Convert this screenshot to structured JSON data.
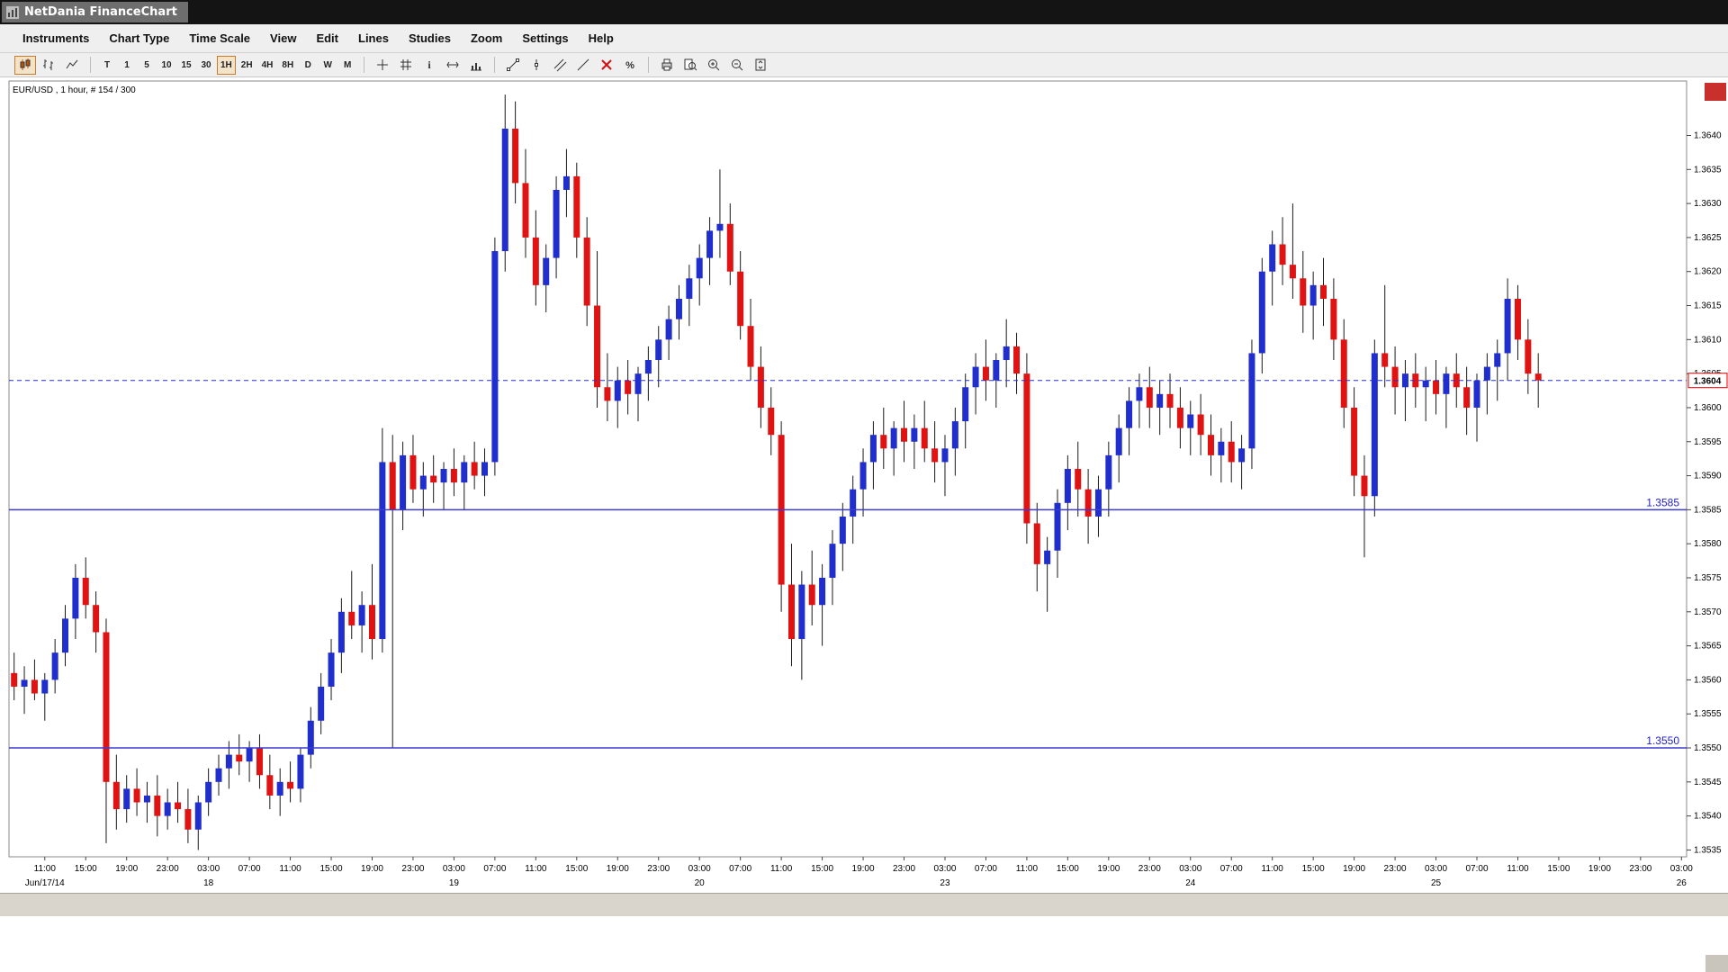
{
  "window": {
    "title": "NetDania FinanceChart"
  },
  "menu": {
    "items": [
      "Instruments",
      "Chart Type",
      "Time Scale",
      "View",
      "Edit",
      "Lines",
      "Studies",
      "Zoom",
      "Settings",
      "Help"
    ]
  },
  "toolbar": {
    "buttons": [
      {
        "name": "candlestick-chart-button",
        "icon": "candles",
        "selected": true
      },
      {
        "name": "bar-chart-button",
        "icon": "bars"
      },
      {
        "name": "line-chart-button",
        "icon": "linechart"
      },
      {
        "type": "sep"
      },
      {
        "name": "timescale-tick-button",
        "label": "T"
      },
      {
        "name": "timescale-1m-button",
        "label": "1"
      },
      {
        "name": "timescale-5m-button",
        "label": "5"
      },
      {
        "name": "timescale-10m-button",
        "label": "10"
      },
      {
        "name": "timescale-15m-button",
        "label": "15"
      },
      {
        "name": "timescale-30m-button",
        "label": "30"
      },
      {
        "name": "timescale-1h-button",
        "label": "1H",
        "selected": true
      },
      {
        "name": "timescale-2h-button",
        "label": "2H"
      },
      {
        "name": "timescale-4h-button",
        "label": "4H"
      },
      {
        "name": "timescale-8h-button",
        "label": "8H"
      },
      {
        "name": "timescale-day-button",
        "label": "D"
      },
      {
        "name": "timescale-week-button",
        "label": "W"
      },
      {
        "name": "timescale-month-button",
        "label": "M"
      },
      {
        "type": "sep"
      },
      {
        "name": "crosshair-button",
        "icon": "crosshair"
      },
      {
        "name": "grid-button",
        "icon": "grid"
      },
      {
        "name": "info-button",
        "icon": "info"
      },
      {
        "name": "expand-horizontal-button",
        "icon": "hresize"
      },
      {
        "name": "volume-button",
        "icon": "volume"
      },
      {
        "type": "sep"
      },
      {
        "name": "trendline-button",
        "icon": "trendline"
      },
      {
        "name": "vertical-line-button",
        "icon": "vline"
      },
      {
        "name": "channel-button",
        "icon": "channel"
      },
      {
        "name": "ray-button",
        "icon": "ray"
      },
      {
        "name": "delete-drawings-button",
        "icon": "deletex"
      },
      {
        "name": "percent-scale-button",
        "icon": "percent"
      },
      {
        "type": "sep"
      },
      {
        "name": "print-button",
        "icon": "print"
      },
      {
        "name": "print-preview-button",
        "icon": "preview"
      },
      {
        "name": "zoom-in-button",
        "icon": "zoomin"
      },
      {
        "name": "zoom-out-button",
        "icon": "zoomout"
      },
      {
        "name": "y-axis-scale-button",
        "icon": "scalebtn"
      }
    ]
  },
  "chart": {
    "instrument_label": "EUR/USD , 1 hour, # 154 / 300",
    "current_price_label": "1.3604",
    "support_lines": [
      {
        "label": "1.3585",
        "value": 1.3585
      },
      {
        "label": "1.3550",
        "value": 1.355
      }
    ]
  },
  "chart_data": {
    "type": "candlestick",
    "symbol": "EUR/USD",
    "interval": "1 hour",
    "colors": {
      "up": "#1f2ecc",
      "down": "#e01212",
      "wick": "#1a1a1a",
      "line": "#2233cc"
    },
    "current_price": 1.3604,
    "y_axis": {
      "min": 1.3534,
      "max": 1.3648,
      "labels": [
        "1.3640",
        "1.3635",
        "1.3630",
        "1.3625",
        "1.3620",
        "1.3615",
        "1.3610",
        "1.3605",
        "1.3600",
        "1.3595",
        "1.3590",
        "1.3585",
        "1.3580",
        "1.3575",
        "1.3570",
        "1.3565",
        "1.3560",
        "1.3555",
        "1.3550",
        "1.3545",
        "1.3540",
        "1.3535"
      ]
    },
    "x_axis": {
      "total_slots": 164,
      "time_labels": [
        {
          "s": 3,
          "t": "11:00"
        },
        {
          "s": 7,
          "t": "15:00"
        },
        {
          "s": 11,
          "t": "19:00"
        },
        {
          "s": 15,
          "t": "23:00"
        },
        {
          "s": 19,
          "t": "03:00"
        },
        {
          "s": 23,
          "t": "07:00"
        },
        {
          "s": 27,
          "t": "11:00"
        },
        {
          "s": 31,
          "t": "15:00"
        },
        {
          "s": 35,
          "t": "19:00"
        },
        {
          "s": 39,
          "t": "23:00"
        },
        {
          "s": 43,
          "t": "03:00"
        },
        {
          "s": 47,
          "t": "07:00"
        },
        {
          "s": 51,
          "t": "11:00"
        },
        {
          "s": 55,
          "t": "15:00"
        },
        {
          "s": 59,
          "t": "19:00"
        },
        {
          "s": 63,
          "t": "23:00"
        },
        {
          "s": 67,
          "t": "03:00"
        },
        {
          "s": 71,
          "t": "07:00"
        },
        {
          "s": 75,
          "t": "11:00"
        },
        {
          "s": 79,
          "t": "15:00"
        },
        {
          "s": 83,
          "t": "19:00"
        },
        {
          "s": 87,
          "t": "23:00"
        },
        {
          "s": 91,
          "t": "03:00"
        },
        {
          "s": 95,
          "t": "07:00"
        },
        {
          "s": 99,
          "t": "11:00"
        },
        {
          "s": 103,
          "t": "15:00"
        },
        {
          "s": 107,
          "t": "19:00"
        },
        {
          "s": 111,
          "t": "23:00"
        },
        {
          "s": 115,
          "t": "03:00"
        },
        {
          "s": 119,
          "t": "07:00"
        },
        {
          "s": 123,
          "t": "11:00"
        },
        {
          "s": 127,
          "t": "15:00"
        },
        {
          "s": 131,
          "t": "19:00"
        },
        {
          "s": 135,
          "t": "23:00"
        },
        {
          "s": 139,
          "t": "03:00"
        },
        {
          "s": 143,
          "t": "07:00"
        },
        {
          "s": 147,
          "t": "11:00"
        },
        {
          "s": 151,
          "t": "15:00"
        },
        {
          "s": 155,
          "t": "19:00"
        },
        {
          "s": 159,
          "t": "23:00"
        },
        {
          "s": 163,
          "t": "03:00"
        }
      ],
      "date_labels": [
        {
          "s": 3,
          "t": "Jun/17/14"
        },
        {
          "s": 19,
          "t": "18"
        },
        {
          "s": 43,
          "t": "19"
        },
        {
          "s": 67,
          "t": "20"
        },
        {
          "s": 91,
          "t": "23"
        },
        {
          "s": 115,
          "t": "24"
        },
        {
          "s": 139,
          "t": "25"
        },
        {
          "s": 163,
          "t": "26"
        }
      ]
    },
    "candles": [
      [
        1.3561,
        1.3564,
        1.3557,
        1.3559
      ],
      [
        1.3559,
        1.3562,
        1.3555,
        1.356
      ],
      [
        1.356,
        1.3563,
        1.3557,
        1.3558
      ],
      [
        1.3558,
        1.3561,
        1.3554,
        1.356
      ],
      [
        1.356,
        1.3566,
        1.3558,
        1.3564
      ],
      [
        1.3564,
        1.3571,
        1.3562,
        1.3569
      ],
      [
        1.3569,
        1.3577,
        1.3566,
        1.3575
      ],
      [
        1.3575,
        1.3578,
        1.3569,
        1.3571
      ],
      [
        1.3571,
        1.3573,
        1.3564,
        1.3567
      ],
      [
        1.3567,
        1.3569,
        1.3536,
        1.3545
      ],
      [
        1.3545,
        1.3549,
        1.3538,
        1.3541
      ],
      [
        1.3541,
        1.3546,
        1.3539,
        1.3544
      ],
      [
        1.3544,
        1.3547,
        1.354,
        1.3542
      ],
      [
        1.3542,
        1.3545,
        1.3539,
        1.3543
      ],
      [
        1.3543,
        1.3546,
        1.3537,
        1.354
      ],
      [
        1.354,
        1.3544,
        1.3538,
        1.3542
      ],
      [
        1.3542,
        1.3545,
        1.3539,
        1.3541
      ],
      [
        1.3541,
        1.3544,
        1.3536,
        1.3538
      ],
      [
        1.3538,
        1.3543,
        1.3535,
        1.3542
      ],
      [
        1.3542,
        1.3547,
        1.354,
        1.3545
      ],
      [
        1.3545,
        1.3549,
        1.3543,
        1.3547
      ],
      [
        1.3547,
        1.3551,
        1.3544,
        1.3549
      ],
      [
        1.3549,
        1.3552,
        1.3546,
        1.3548
      ],
      [
        1.3548,
        1.3551,
        1.3545,
        1.355
      ],
      [
        1.355,
        1.3552,
        1.3544,
        1.3546
      ],
      [
        1.3546,
        1.3549,
        1.3541,
        1.3543
      ],
      [
        1.3543,
        1.3547,
        1.354,
        1.3545
      ],
      [
        1.3545,
        1.3548,
        1.3542,
        1.3544
      ],
      [
        1.3544,
        1.355,
        1.3542,
        1.3549
      ],
      [
        1.3549,
        1.3556,
        1.3547,
        1.3554
      ],
      [
        1.3554,
        1.3561,
        1.3552,
        1.3559
      ],
      [
        1.3559,
        1.3566,
        1.3557,
        1.3564
      ],
      [
        1.3564,
        1.3572,
        1.3561,
        1.357
      ],
      [
        1.357,
        1.3576,
        1.3566,
        1.3568
      ],
      [
        1.3568,
        1.3573,
        1.3564,
        1.3571
      ],
      [
        1.3571,
        1.3577,
        1.3563,
        1.3566
      ],
      [
        1.3566,
        1.3597,
        1.3564,
        1.3592
      ],
      [
        1.3592,
        1.3596,
        1.355,
        1.3585
      ],
      [
        1.3585,
        1.3595,
        1.3582,
        1.3593
      ],
      [
        1.3593,
        1.3596,
        1.3586,
        1.3588
      ],
      [
        1.3588,
        1.3592,
        1.3584,
        1.359
      ],
      [
        1.359,
        1.3593,
        1.3586,
        1.3589
      ],
      [
        1.3589,
        1.3592,
        1.3585,
        1.3591
      ],
      [
        1.3591,
        1.3594,
        1.3587,
        1.3589
      ],
      [
        1.3589,
        1.3593,
        1.3585,
        1.3592
      ],
      [
        1.3592,
        1.3595,
        1.3588,
        1.359
      ],
      [
        1.359,
        1.3594,
        1.3587,
        1.3592
      ],
      [
        1.3592,
        1.3625,
        1.359,
        1.3623
      ],
      [
        1.3623,
        1.3646,
        1.362,
        1.3641
      ],
      [
        1.3641,
        1.3645,
        1.363,
        1.3633
      ],
      [
        1.3633,
        1.3638,
        1.3622,
        1.3625
      ],
      [
        1.3625,
        1.3629,
        1.3615,
        1.3618
      ],
      [
        1.3618,
        1.3624,
        1.3614,
        1.3622
      ],
      [
        1.3622,
        1.3634,
        1.3619,
        1.3632
      ],
      [
        1.3632,
        1.3638,
        1.3628,
        1.3634
      ],
      [
        1.3634,
        1.3636,
        1.3622,
        1.3625
      ],
      [
        1.3625,
        1.3628,
        1.3612,
        1.3615
      ],
      [
        1.3615,
        1.3623,
        1.36,
        1.3603
      ],
      [
        1.3603,
        1.3608,
        1.3598,
        1.3601
      ],
      [
        1.3601,
        1.3606,
        1.3597,
        1.3604
      ],
      [
        1.3604,
        1.3607,
        1.3599,
        1.3602
      ],
      [
        1.3602,
        1.3606,
        1.3598,
        1.3605
      ],
      [
        1.3605,
        1.3609,
        1.3601,
        1.3607
      ],
      [
        1.3607,
        1.3612,
        1.3603,
        1.361
      ],
      [
        1.361,
        1.3615,
        1.3607,
        1.3613
      ],
      [
        1.3613,
        1.3618,
        1.361,
        1.3616
      ],
      [
        1.3616,
        1.3621,
        1.3612,
        1.3619
      ],
      [
        1.3619,
        1.3624,
        1.3615,
        1.3622
      ],
      [
        1.3622,
        1.3628,
        1.3618,
        1.3626
      ],
      [
        1.3626,
        1.3635,
        1.3622,
        1.3627
      ],
      [
        1.3627,
        1.363,
        1.3618,
        1.362
      ],
      [
        1.362,
        1.3623,
        1.361,
        1.3612
      ],
      [
        1.3612,
        1.3616,
        1.3604,
        1.3606
      ],
      [
        1.3606,
        1.3609,
        1.3597,
        1.36
      ],
      [
        1.36,
        1.3603,
        1.3593,
        1.3596
      ],
      [
        1.3596,
        1.3598,
        1.357,
        1.3574
      ],
      [
        1.3574,
        1.358,
        1.3562,
        1.3566
      ],
      [
        1.3566,
        1.3576,
        1.356,
        1.3574
      ],
      [
        1.3574,
        1.3579,
        1.3568,
        1.3571
      ],
      [
        1.3571,
        1.3577,
        1.3565,
        1.3575
      ],
      [
        1.3575,
        1.3582,
        1.3571,
        1.358
      ],
      [
        1.358,
        1.3586,
        1.3576,
        1.3584
      ],
      [
        1.3584,
        1.359,
        1.358,
        1.3588
      ],
      [
        1.3588,
        1.3594,
        1.3584,
        1.3592
      ],
      [
        1.3592,
        1.3598,
        1.3588,
        1.3596
      ],
      [
        1.3596,
        1.36,
        1.3591,
        1.3594
      ],
      [
        1.3594,
        1.3598,
        1.359,
        1.3597
      ],
      [
        1.3597,
        1.3601,
        1.3592,
        1.3595
      ],
      [
        1.3595,
        1.3599,
        1.3591,
        1.3597
      ],
      [
        1.3597,
        1.3601,
        1.3592,
        1.3594
      ],
      [
        1.3594,
        1.3598,
        1.3589,
        1.3592
      ],
      [
        1.3592,
        1.3596,
        1.3587,
        1.3594
      ],
      [
        1.3594,
        1.36,
        1.359,
        1.3598
      ],
      [
        1.3598,
        1.3605,
        1.3594,
        1.3603
      ],
      [
        1.3603,
        1.3608,
        1.3599,
        1.3606
      ],
      [
        1.3606,
        1.361,
        1.3601,
        1.3604
      ],
      [
        1.3604,
        1.3608,
        1.36,
        1.3607
      ],
      [
        1.3607,
        1.3613,
        1.3603,
        1.3609
      ],
      [
        1.3609,
        1.3611,
        1.3602,
        1.3605
      ],
      [
        1.3605,
        1.3608,
        1.358,
        1.3583
      ],
      [
        1.3583,
        1.3586,
        1.3573,
        1.3577
      ],
      [
        1.3577,
        1.3581,
        1.357,
        1.3579
      ],
      [
        1.3579,
        1.3588,
        1.3575,
        1.3586
      ],
      [
        1.3586,
        1.3593,
        1.3582,
        1.3591
      ],
      [
        1.3591,
        1.3595,
        1.3584,
        1.3588
      ],
      [
        1.3588,
        1.3591,
        1.358,
        1.3584
      ],
      [
        1.3584,
        1.359,
        1.3581,
        1.3588
      ],
      [
        1.3588,
        1.3595,
        1.3584,
        1.3593
      ],
      [
        1.3593,
        1.3599,
        1.3589,
        1.3597
      ],
      [
        1.3597,
        1.3603,
        1.3593,
        1.3601
      ],
      [
        1.3601,
        1.3605,
        1.3597,
        1.3603
      ],
      [
        1.3603,
        1.3606,
        1.3597,
        1.36
      ],
      [
        1.36,
        1.3604,
        1.3596,
        1.3602
      ],
      [
        1.3602,
        1.3605,
        1.3597,
        1.36
      ],
      [
        1.36,
        1.3603,
        1.3594,
        1.3597
      ],
      [
        1.3597,
        1.3601,
        1.3593,
        1.3599
      ],
      [
        1.3599,
        1.3602,
        1.3593,
        1.3596
      ],
      [
        1.3596,
        1.3599,
        1.359,
        1.3593
      ],
      [
        1.3593,
        1.3597,
        1.3589,
        1.3595
      ],
      [
        1.3595,
        1.3598,
        1.3589,
        1.3592
      ],
      [
        1.3592,
        1.3596,
        1.3588,
        1.3594
      ],
      [
        1.3594,
        1.361,
        1.3591,
        1.3608
      ],
      [
        1.3608,
        1.3622,
        1.3605,
        1.362
      ],
      [
        1.362,
        1.3626,
        1.3615,
        1.3624
      ],
      [
        1.3624,
        1.3628,
        1.3618,
        1.3621
      ],
      [
        1.3621,
        1.363,
        1.3616,
        1.3619
      ],
      [
        1.3619,
        1.3623,
        1.3611,
        1.3615
      ],
      [
        1.3615,
        1.362,
        1.361,
        1.3618
      ],
      [
        1.3618,
        1.3622,
        1.3612,
        1.3616
      ],
      [
        1.3616,
        1.3619,
        1.3607,
        1.361
      ],
      [
        1.361,
        1.3613,
        1.3597,
        1.36
      ],
      [
        1.36,
        1.3603,
        1.3587,
        1.359
      ],
      [
        1.359,
        1.3593,
        1.3578,
        1.3587
      ],
      [
        1.3587,
        1.361,
        1.3584,
        1.3608
      ],
      [
        1.3608,
        1.3618,
        1.3603,
        1.3606
      ],
      [
        1.3606,
        1.3609,
        1.3599,
        1.3603
      ],
      [
        1.3603,
        1.3607,
        1.3598,
        1.3605
      ],
      [
        1.3605,
        1.3608,
        1.36,
        1.3603
      ],
      [
        1.3603,
        1.3606,
        1.3598,
        1.3604
      ],
      [
        1.3604,
        1.3607,
        1.3599,
        1.3602
      ],
      [
        1.3602,
        1.3606,
        1.3597,
        1.3605
      ],
      [
        1.3605,
        1.3608,
        1.36,
        1.3603
      ],
      [
        1.3603,
        1.3606,
        1.3596,
        1.36
      ],
      [
        1.36,
        1.3605,
        1.3595,
        1.3604
      ],
      [
        1.3604,
        1.3608,
        1.3599,
        1.3606
      ],
      [
        1.3606,
        1.361,
        1.3601,
        1.3608
      ],
      [
        1.3608,
        1.3619,
        1.3604,
        1.3616
      ],
      [
        1.3616,
        1.3618,
        1.3607,
        1.361
      ],
      [
        1.361,
        1.3613,
        1.3602,
        1.3605
      ],
      [
        1.3605,
        1.3608,
        1.36,
        1.3604
      ]
    ]
  }
}
